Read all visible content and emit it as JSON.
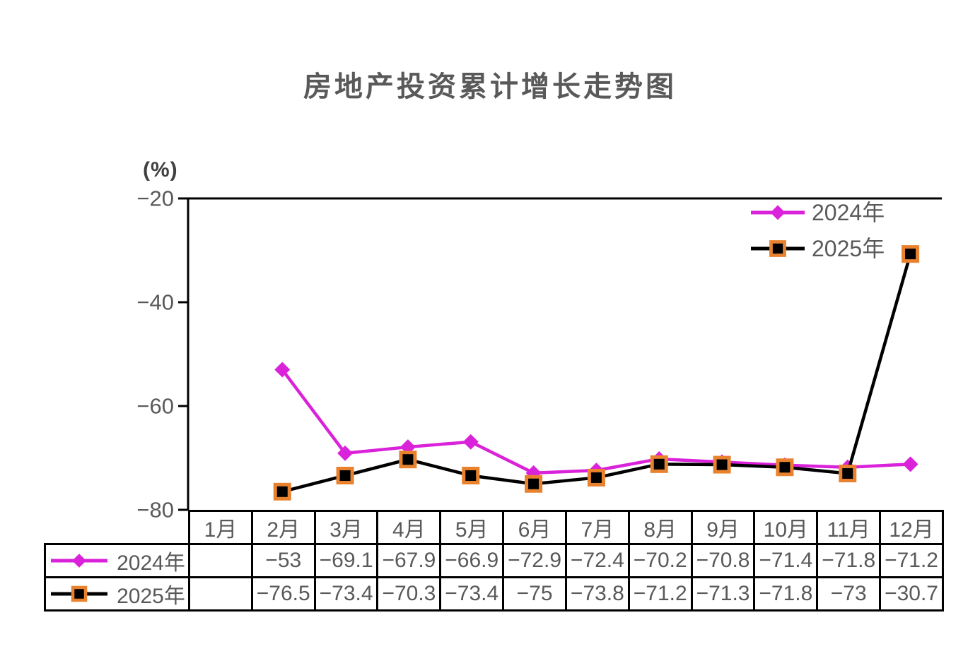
{
  "title": "房地产投资累计增长走势图",
  "chart_data": {
    "type": "line",
    "title": "房地产投资累计增长走势图",
    "unit_label": "(%)",
    "xlabel": "",
    "ylabel": "(%)",
    "categories": [
      "1月",
      "2月",
      "3月",
      "4月",
      "5月",
      "6月",
      "7月",
      "8月",
      "9月",
      "10月",
      "11月",
      "12月"
    ],
    "series": [
      {
        "name": "2024年",
        "marker": "diamond",
        "color": "#da22da",
        "values": [
          null,
          -53,
          -69.1,
          -67.9,
          -66.9,
          -72.9,
          -72.4,
          -70.2,
          -70.8,
          -71.4,
          -71.8,
          -71.2
        ]
      },
      {
        "name": "2025年",
        "marker": "square",
        "color": "#000000",
        "marker_border": "#e8822e",
        "values": [
          null,
          -76.5,
          -73.4,
          -70.3,
          -73.4,
          -75,
          -73.8,
          -71.2,
          -71.3,
          -71.8,
          -73,
          -30.7
        ]
      }
    ],
    "ylim": [
      -80,
      -20
    ],
    "yticks": [
      -20,
      -40,
      -60,
      -80
    ],
    "grid": false,
    "legend_position": "top-right",
    "data_table": true
  },
  "colors": {
    "axis": "#000000",
    "text": "#595959",
    "series_2024": "#da22da",
    "series_2025": "#000000",
    "marker_border_2025": "#e8822e"
  }
}
